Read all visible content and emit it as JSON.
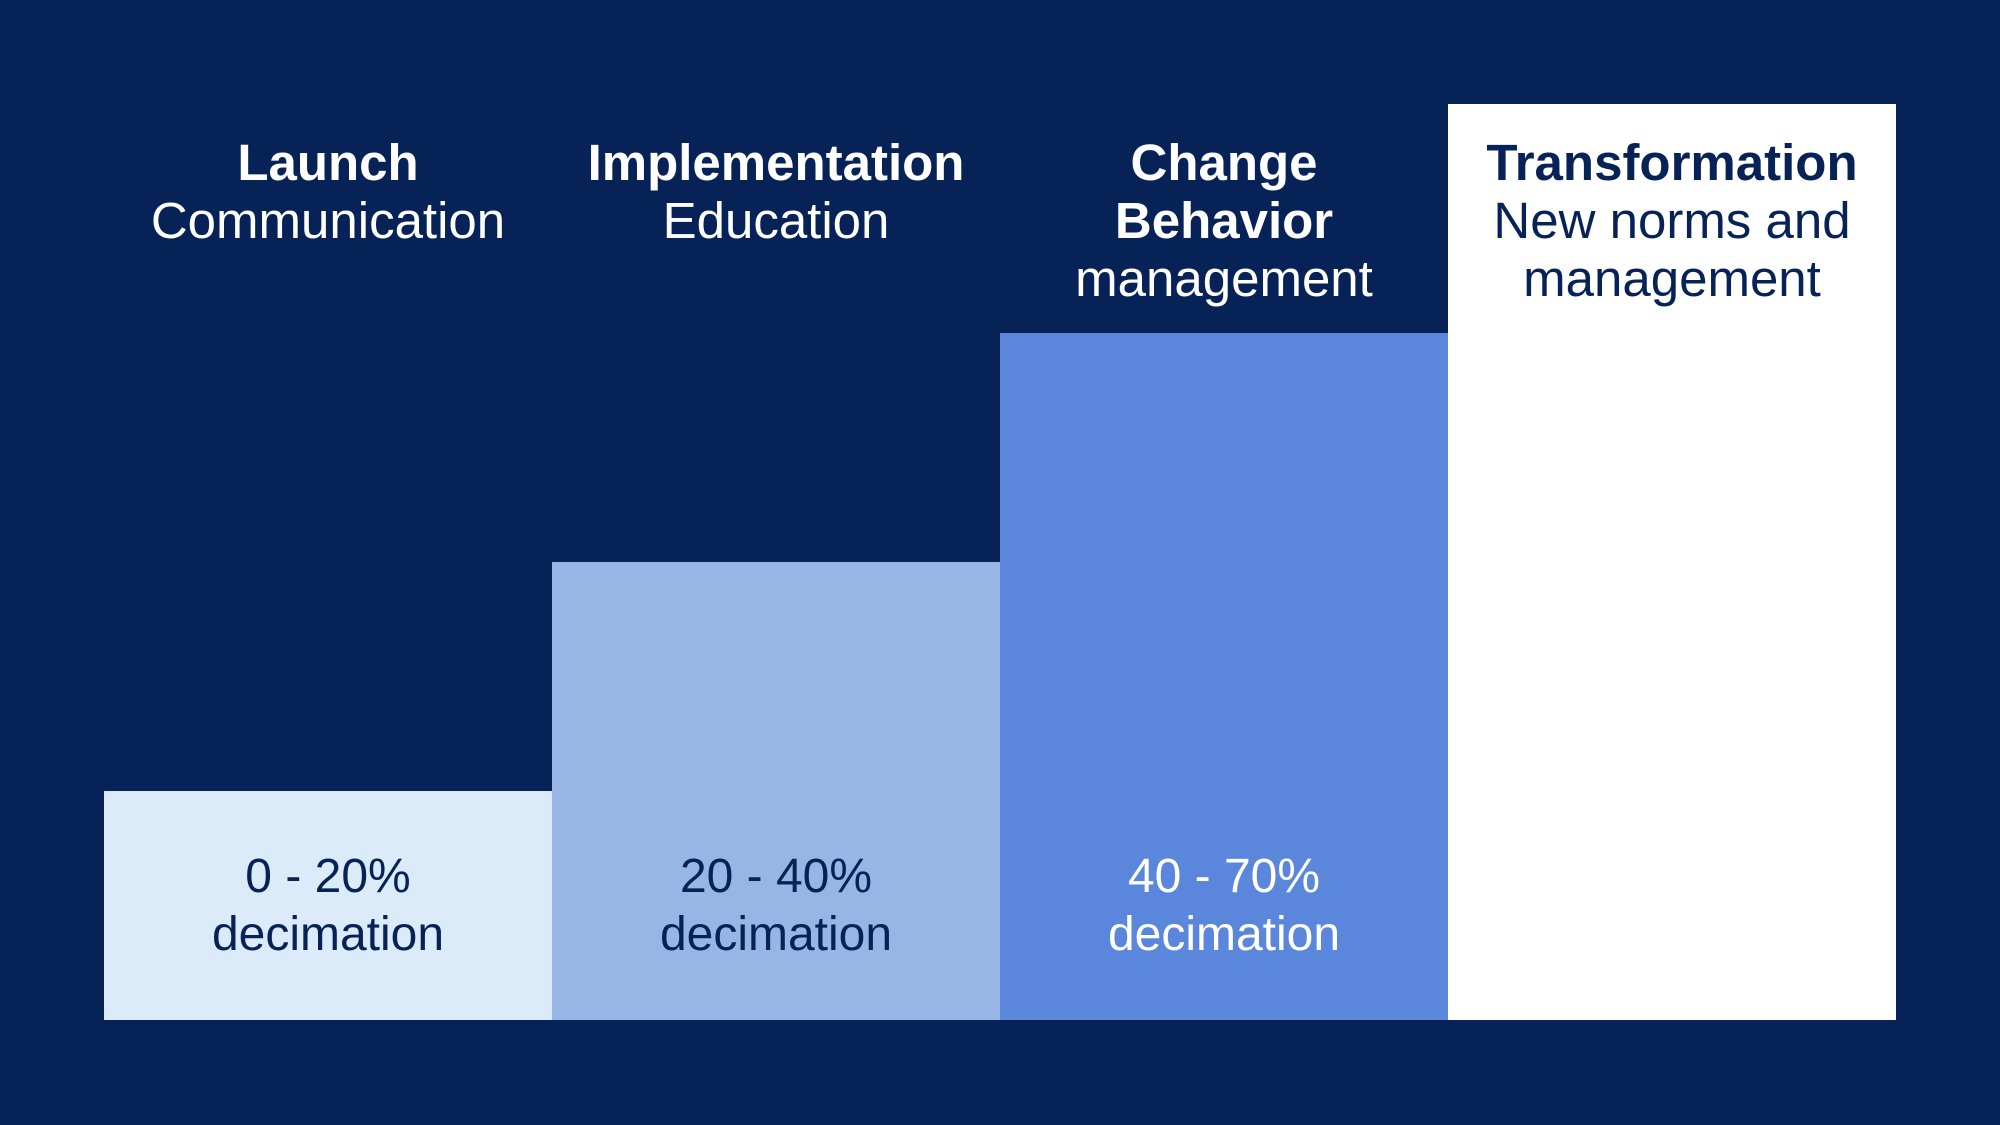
{
  "colors": {
    "background": "#072257",
    "text_light": "#FFFFFF",
    "text_dark": "#072257"
  },
  "stages": [
    {
      "title": "Launch",
      "subtitle": "Communication",
      "range": "0 - 20%",
      "unit": "decimation",
      "level": 0.25,
      "block_color": "#DBEBF9",
      "heading_color": "#FFFFFF",
      "value_color": "#072257"
    },
    {
      "title": "Implementation",
      "subtitle": "Education",
      "range": "20 - 40%",
      "unit": "decimation",
      "level": 0.5,
      "block_color": "#98B6E5",
      "heading_color": "#FFFFFF",
      "value_color": "#072257"
    },
    {
      "title": "Change Behavior",
      "subtitle": "management",
      "range": "40 - 70%",
      "unit": "decimation",
      "level": 0.75,
      "block_color": "#5A86DB",
      "heading_color": "#FFFFFF",
      "value_color": "#FFFFFF"
    },
    {
      "title": "Transformation",
      "subtitle": "New norms and management",
      "range": "",
      "unit": "",
      "level": 1.0,
      "block_color": "#FFFFFF",
      "heading_color": "#072257",
      "value_color": "#072257"
    }
  ]
}
